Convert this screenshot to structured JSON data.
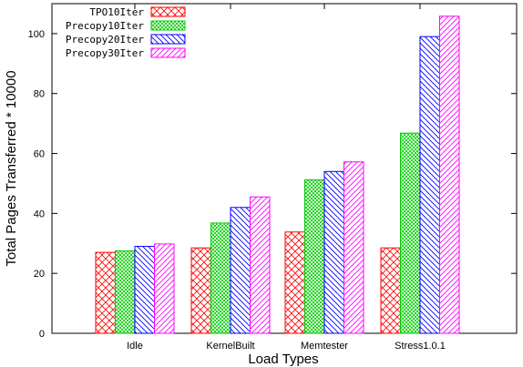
{
  "chart_data": {
    "type": "bar",
    "categories": [
      "Idle",
      "KernelBuilt",
      "Memtester",
      "Stress1.0.1"
    ],
    "series": [
      {
        "name": "TPO10Iter",
        "values": [
          27,
          28.5,
          33.8,
          28.5
        ],
        "color": "#ff0000",
        "pattern": "crosshatch"
      },
      {
        "name": "Precopy10Iter",
        "values": [
          27.5,
          36.8,
          51.2,
          66.8
        ],
        "color": "#00cc00",
        "pattern": "dense-crosshatch"
      },
      {
        "name": "Precopy20Iter",
        "values": [
          29,
          42,
          54,
          99
        ],
        "color": "#0000ff",
        "pattern": "diagonal-back"
      },
      {
        "name": "Precopy30Iter",
        "values": [
          29.8,
          45.5,
          57.2,
          105.8
        ],
        "color": "#ff00ff",
        "pattern": "diagonal-forward"
      }
    ],
    "xlabel": "Load Types",
    "ylabel": "Total Pages Transferred * 10000",
    "ylim": [
      0,
      110
    ],
    "yticks": [
      0,
      20,
      40,
      60,
      80,
      100
    ],
    "legend_position": "top-left",
    "grid": false
  }
}
